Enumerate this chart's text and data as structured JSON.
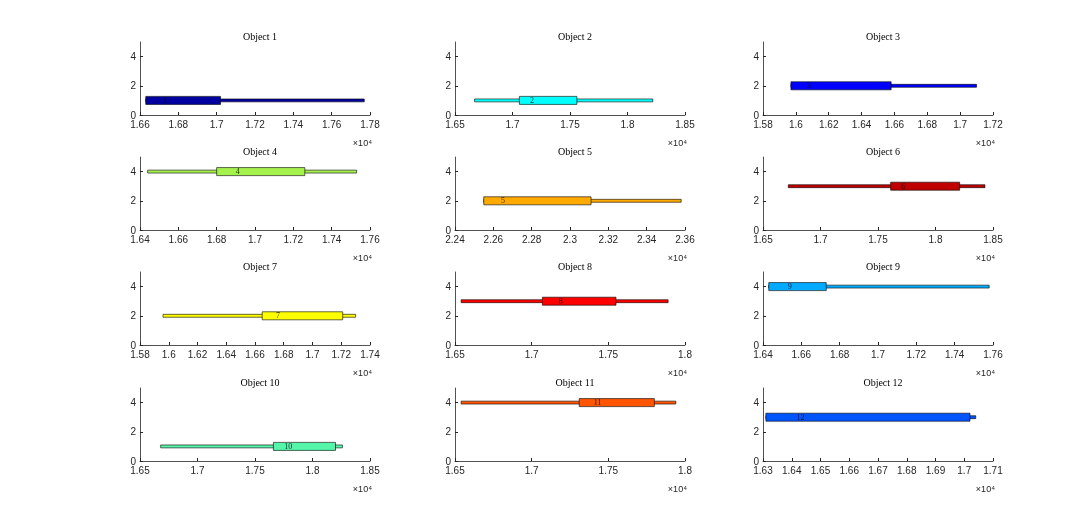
{
  "chart_data": [
    {
      "type": "bar",
      "orientation": "horizontal",
      "title": "Object 1",
      "xlim": [
        1.66,
        1.78
      ],
      "xticks": [
        1.66,
        1.68,
        1.7,
        1.72,
        1.74,
        1.76,
        1.78
      ],
      "ylim": [
        0,
        5
      ],
      "yticks": [
        0,
        2,
        4
      ],
      "grid": false,
      "series": [
        {
          "color": "#0000a0",
          "x": [
            1
          ],
          "base": [
            1.663
          ],
          "values": [
            0.114
          ]
        },
        {
          "color": "#0000a0",
          "x": [
            1
          ],
          "base": [
            1.663
          ],
          "values": [
            0.039
          ]
        }
      ],
      "annotations": [
        {
          "text": "1",
          "x": 1.673,
          "y": 1
        },
        "×10⁴"
      ]
    },
    {
      "type": "bar",
      "orientation": "horizontal",
      "title": "Object 2",
      "xlim": [
        1.65,
        1.85
      ],
      "xticks": [
        1.65,
        1.7,
        1.75,
        1.8,
        1.85
      ],
      "ylim": [
        0,
        5
      ],
      "yticks": [
        0,
        2,
        4
      ],
      "grid": false,
      "series": [
        {
          "color": "#00ffff",
          "x": [
            1
          ],
          "base": [
            1.667
          ],
          "values": [
            0.155
          ]
        },
        {
          "color": "#00ffff",
          "x": [
            1
          ],
          "base": [
            1.706
          ],
          "values": [
            0.05
          ]
        }
      ],
      "annotations": [
        {
          "text": "2",
          "x": 1.717,
          "y": 1
        },
        "×10⁴"
      ]
    },
    {
      "type": "bar",
      "orientation": "horizontal",
      "title": "Object 3",
      "xlim": [
        1.58,
        1.72
      ],
      "xticks": [
        1.58,
        1.6,
        1.62,
        1.64,
        1.66,
        1.68,
        1.7,
        1.72
      ],
      "ylim": [
        0,
        5
      ],
      "yticks": [
        0,
        2,
        4
      ],
      "grid": false,
      "series": [
        {
          "color": "#0000ff",
          "x": [
            2
          ],
          "base": [
            1.597
          ],
          "values": [
            0.113
          ]
        },
        {
          "color": "#0000ff",
          "x": [
            2
          ],
          "base": [
            1.597
          ],
          "values": [
            0.061
          ]
        }
      ],
      "annotations": [
        {
          "text": "3",
          "x": 1.608,
          "y": 2
        },
        "×10⁴"
      ]
    },
    {
      "type": "bar",
      "orientation": "horizontal",
      "title": "Object 4",
      "xlim": [
        1.64,
        1.76
      ],
      "xticks": [
        1.64,
        1.66,
        1.68,
        1.7,
        1.72,
        1.74,
        1.76
      ],
      "ylim": [
        0,
        5
      ],
      "yticks": [
        0,
        2,
        4
      ],
      "grid": false,
      "series": [
        {
          "color": "#a6f24d",
          "x": [
            4
          ],
          "base": [
            1.644
          ],
          "values": [
            0.109
          ]
        },
        {
          "color": "#a6f24d",
          "x": [
            4
          ],
          "base": [
            1.68
          ],
          "values": [
            0.046
          ]
        }
      ],
      "annotations": [
        {
          "text": "4",
          "x": 1.691,
          "y": 4
        },
        "×10⁴"
      ]
    },
    {
      "type": "bar",
      "orientation": "horizontal",
      "title": "Object 5",
      "xlim": [
        2.24,
        2.36
      ],
      "xticks": [
        2.24,
        2.26,
        2.28,
        2.3,
        2.32,
        2.34,
        2.36
      ],
      "ylim": [
        0,
        5
      ],
      "yticks": [
        0,
        2,
        4
      ],
      "grid": false,
      "series": [
        {
          "color": "#ffaa00",
          "x": [
            2
          ],
          "base": [
            2.255
          ],
          "values": [
            0.103
          ]
        },
        {
          "color": "#ffaa00",
          "x": [
            2
          ],
          "base": [
            2.255
          ],
          "values": [
            0.056
          ]
        }
      ],
      "annotations": [
        {
          "text": "5",
          "x": 2.265,
          "y": 2
        },
        "×10⁴"
      ]
    },
    {
      "type": "bar",
      "orientation": "horizontal",
      "title": "Object 6",
      "xlim": [
        1.65,
        1.85
      ],
      "xticks": [
        1.65,
        1.7,
        1.75,
        1.8,
        1.85
      ],
      "ylim": [
        0,
        5
      ],
      "yticks": [
        0,
        2,
        4
      ],
      "grid": false,
      "series": [
        {
          "color": "#c00000",
          "x": [
            3
          ],
          "base": [
            1.672
          ],
          "values": [
            0.171
          ]
        },
        {
          "color": "#c00000",
          "x": [
            3
          ],
          "base": [
            1.761
          ],
          "values": [
            0.06
          ]
        }
      ],
      "annotations": [
        {
          "text": "6",
          "x": 1.772,
          "y": 3
        },
        "×10⁴"
      ]
    },
    {
      "type": "bar",
      "orientation": "horizontal",
      "title": "Object 7",
      "xlim": [
        1.58,
        1.74
      ],
      "xticks": [
        1.58,
        1.6,
        1.62,
        1.64,
        1.66,
        1.68,
        1.7,
        1.72,
        1.74
      ],
      "ylim": [
        0,
        5
      ],
      "yticks": [
        0,
        2,
        4
      ],
      "grid": false,
      "series": [
        {
          "color": "#ffff00",
          "x": [
            2
          ],
          "base": [
            1.596
          ],
          "values": [
            0.134
          ]
        },
        {
          "color": "#ffff00",
          "x": [
            2
          ],
          "base": [
            1.665
          ],
          "values": [
            0.056
          ]
        }
      ],
      "annotations": [
        {
          "text": "7",
          "x": 1.676,
          "y": 2
        },
        "×10⁴"
      ]
    },
    {
      "type": "bar",
      "orientation": "horizontal",
      "title": "Object 8",
      "xlim": [
        1.65,
        1.8
      ],
      "xticks": [
        1.65,
        1.7,
        1.75,
        1.8
      ],
      "ylim": [
        0,
        5
      ],
      "yticks": [
        0,
        2,
        4
      ],
      "grid": false,
      "series": [
        {
          "color": "#ff0000",
          "x": [
            3
          ],
          "base": [
            1.654
          ],
          "values": [
            0.135
          ]
        },
        {
          "color": "#ff0000",
          "x": [
            3
          ],
          "base": [
            1.707
          ],
          "values": [
            0.048
          ]
        }
      ],
      "annotations": [
        {
          "text": "8",
          "x": 1.719,
          "y": 3
        },
        "×10⁴"
      ]
    },
    {
      "type": "bar",
      "orientation": "horizontal",
      "title": "Object 9",
      "xlim": [
        1.64,
        1.76
      ],
      "xticks": [
        1.64,
        1.66,
        1.68,
        1.7,
        1.72,
        1.74,
        1.76
      ],
      "ylim": [
        0,
        5
      ],
      "yticks": [
        0,
        2,
        4
      ],
      "grid": false,
      "series": [
        {
          "color": "#00aaff",
          "x": [
            4
          ],
          "base": [
            1.643
          ],
          "values": [
            0.115
          ]
        },
        {
          "color": "#00aaff",
          "x": [
            4
          ],
          "base": [
            1.643
          ],
          "values": [
            0.03
          ]
        }
      ],
      "annotations": [
        {
          "text": "9",
          "x": 1.654,
          "y": 4
        },
        "×10⁴"
      ]
    },
    {
      "type": "bar",
      "orientation": "horizontal",
      "title": "Object 10",
      "xlim": [
        1.65,
        1.85
      ],
      "xticks": [
        1.65,
        1.7,
        1.75,
        1.8,
        1.85
      ],
      "ylim": [
        0,
        5
      ],
      "yticks": [
        0,
        2,
        4
      ],
      "grid": false,
      "series": [
        {
          "color": "#55f5aa",
          "x": [
            1
          ],
          "base": [
            1.668
          ],
          "values": [
            0.158
          ]
        },
        {
          "color": "#55f5aa",
          "x": [
            1
          ],
          "base": [
            1.766
          ],
          "values": [
            0.054
          ]
        }
      ],
      "annotations": [
        {
          "text": "10",
          "x": 1.779,
          "y": 1
        },
        "×10⁴"
      ]
    },
    {
      "type": "bar",
      "orientation": "horizontal",
      "title": "Object 11",
      "xlim": [
        1.65,
        1.8
      ],
      "xticks": [
        1.65,
        1.7,
        1.75,
        1.8
      ],
      "ylim": [
        0,
        5
      ],
      "yticks": [
        0,
        2,
        4
      ],
      "grid": false,
      "series": [
        {
          "color": "#ff5500",
          "x": [
            4
          ],
          "base": [
            1.654
          ],
          "values": [
            0.14
          ]
        },
        {
          "color": "#ff5500",
          "x": [
            4
          ],
          "base": [
            1.731
          ],
          "values": [
            0.049
          ]
        }
      ],
      "annotations": [
        {
          "text": "11",
          "x": 1.743,
          "y": 4
        },
        "×10⁴"
      ]
    },
    {
      "type": "bar",
      "orientation": "horizontal",
      "title": "Object 12",
      "xlim": [
        1.63,
        1.71
      ],
      "xticks": [
        1.63,
        1.64,
        1.65,
        1.66,
        1.67,
        1.68,
        1.69,
        1.7,
        1.71
      ],
      "ylim": [
        0,
        5
      ],
      "yticks": [
        0,
        2,
        4
      ],
      "grid": false,
      "series": [
        {
          "color": "#0055ff",
          "x": [
            3
          ],
          "base": [
            1.631
          ],
          "values": [
            0.073
          ]
        },
        {
          "color": "#0055ff",
          "x": [
            3
          ],
          "base": [
            1.631
          ],
          "values": [
            0.071
          ]
        }
      ],
      "annotations": [
        {
          "text": "12",
          "x": 1.643,
          "y": 3
        },
        "×10⁴"
      ]
    }
  ]
}
